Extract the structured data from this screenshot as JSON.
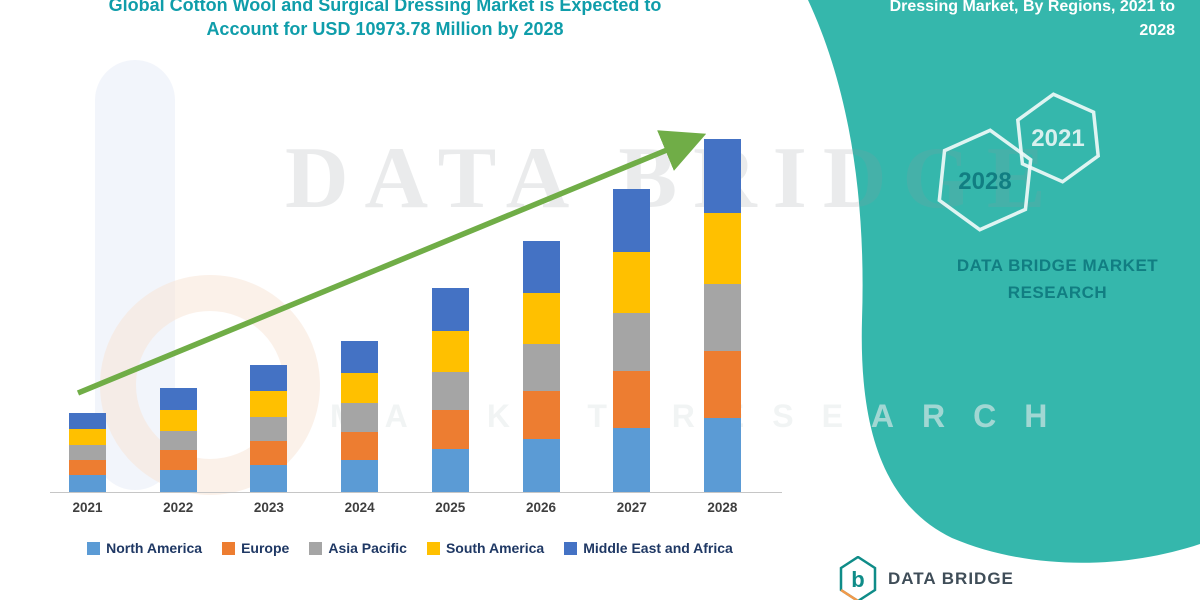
{
  "header": {
    "left_title_line1": "Global Cotton Wool and Surgical Dressing Market is Expected to",
    "left_title_line2": "Account for USD 10973.78 Million by 2028",
    "right_title_line1": "Dressing Market, By Regions, 2021 to",
    "right_title_line2": "2028"
  },
  "side_panel": {
    "hexagon_left_year": "2028",
    "hexagon_right_year": "2021",
    "brand_line1": "DATA BRIDGE MARKET",
    "brand_line2": "RESEARCH"
  },
  "watermark": {
    "large_text": "DATA BRIDGE",
    "spaced_text": "MARKET RESEARCH"
  },
  "footer_logo": {
    "text": "DATA BRIDGE"
  },
  "colors": {
    "teal_panel": "#35b7ac",
    "title_text": "#0f9daa",
    "legend_text": "#1f3864",
    "axis_label": "#3f3f3f",
    "trend_arrow": "#70AD47"
  },
  "chart_data": {
    "type": "bar",
    "stacked": true,
    "title": "Global Cotton Wool and Surgical Dressing Market is Expected to Account for USD 10973.78 Million by 2028",
    "unit": "USD Million",
    "categories": [
      "2021",
      "2022",
      "2023",
      "2024",
      "2025",
      "2026",
      "2027",
      "2028"
    ],
    "series": [
      {
        "name": "North America",
        "color": "#5B9BD5",
        "values": [
          520,
          680,
          832,
          987,
          1331,
          1642,
          1980,
          2304
        ]
      },
      {
        "name": "Europe",
        "color": "#ED7D31",
        "values": [
          470,
          616,
          752,
          893,
          1205,
          1486,
          1792,
          2085
        ]
      },
      {
        "name": "Asia Pacific",
        "color": "#A5A5A5",
        "values": [
          470,
          616,
          752,
          893,
          1205,
          1486,
          1792,
          2085
        ]
      },
      {
        "name": "South America",
        "color": "#FFC000",
        "values": [
          495,
          648,
          792,
          940,
          1268,
          1564,
          1886,
          2195
        ]
      },
      {
        "name": "Middle East and Africa",
        "color": "#4472C4",
        "values": [
          520,
          680,
          832,
          987,
          1331,
          1642,
          1980,
          2304.78
        ]
      }
    ],
    "totals": [
      2475,
      3240,
      3960,
      4700,
      6340,
      7820,
      9430,
      10973.78
    ],
    "ylim": [
      0,
      11500
    ],
    "grid": false,
    "legend_position": "bottom",
    "trend_arrow": true,
    "trend_arrow_color": "#70AD47"
  }
}
